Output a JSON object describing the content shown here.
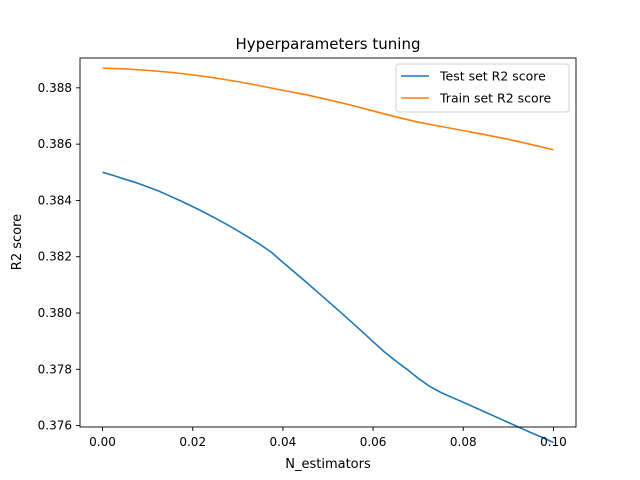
{
  "chart_data": {
    "type": "line",
    "title": "Hyperparameters tuning",
    "xlabel": "N_estimators",
    "ylabel": "R2 score",
    "xlim": [
      -0.005,
      0.105
    ],
    "ylim": [
      0.37595,
      0.38906
    ],
    "xticks": [
      0.0,
      0.02,
      0.04,
      0.06,
      0.08,
      0.1
    ],
    "xtick_labels": [
      "0.00",
      "0.02",
      "0.04",
      "0.06",
      "0.08",
      "0.10"
    ],
    "yticks": [
      0.376,
      0.378,
      0.38,
      0.382,
      0.384,
      0.386,
      0.388
    ],
    "ytick_labels": [
      "0.376",
      "0.378",
      "0.380",
      "0.382",
      "0.384",
      "0.386",
      "0.388"
    ],
    "grid": false,
    "legend_position": "top-right",
    "series": [
      {
        "name": "Test set R2 score",
        "color": "#1f77b4",
        "x": [
          0.0,
          0.0025,
          0.005,
          0.0075,
          0.01,
          0.0125,
          0.015,
          0.0175,
          0.02,
          0.0225,
          0.025,
          0.0275,
          0.03,
          0.0325,
          0.035,
          0.0375,
          0.04,
          0.0425,
          0.045,
          0.0475,
          0.05,
          0.0525,
          0.055,
          0.0575,
          0.06,
          0.0625,
          0.065,
          0.0675,
          0.07,
          0.0725,
          0.075,
          0.0775,
          0.08,
          0.0825,
          0.085,
          0.0875,
          0.09,
          0.0925,
          0.095,
          0.0975,
          0.1
        ],
        "values": [
          0.385,
          0.38488,
          0.38475,
          0.38463,
          0.38448,
          0.38433,
          0.38415,
          0.38397,
          0.38378,
          0.38358,
          0.38337,
          0.38315,
          0.38292,
          0.38268,
          0.38243,
          0.38215,
          0.3818,
          0.38146,
          0.38112,
          0.38077,
          0.38042,
          0.38007,
          0.37971,
          0.37935,
          0.37898,
          0.37862,
          0.3783,
          0.378,
          0.37768,
          0.3774,
          0.37718,
          0.377,
          0.37683,
          0.37665,
          0.37647,
          0.37629,
          0.37611,
          0.37593,
          0.37575,
          0.37558,
          0.3754
        ]
      },
      {
        "name": "Train set R2 score",
        "color": "#ff7f0e",
        "x": [
          0.0,
          0.005,
          0.01,
          0.015,
          0.02,
          0.025,
          0.03,
          0.035,
          0.04,
          0.045,
          0.05,
          0.055,
          0.06,
          0.065,
          0.07,
          0.075,
          0.08,
          0.085,
          0.09,
          0.095,
          0.1
        ],
        "values": [
          0.3887,
          0.38867,
          0.38862,
          0.38855,
          0.38846,
          0.38835,
          0.38822,
          0.38807,
          0.38791,
          0.38776,
          0.38758,
          0.38739,
          0.38718,
          0.38697,
          0.38678,
          0.38663,
          0.38648,
          0.38633,
          0.38617,
          0.38599,
          0.3858
        ]
      }
    ]
  }
}
